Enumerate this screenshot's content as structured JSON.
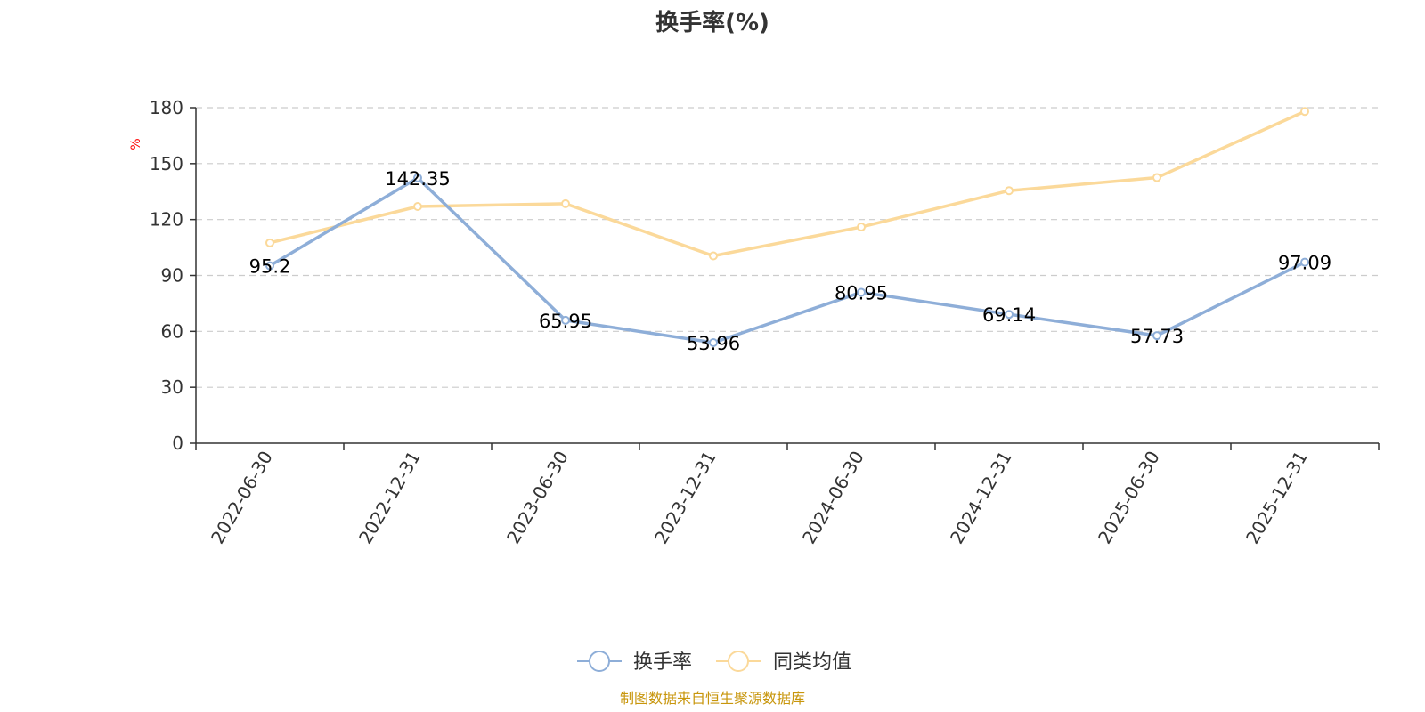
{
  "chart_data": {
    "type": "line",
    "title": "换手率(%)",
    "y_unit": "%",
    "categories": [
      "2022-06-30",
      "2022-12-31",
      "2023-06-30",
      "2023-12-31",
      "2024-06-30",
      "2024-12-31",
      "2025-06-30",
      "2025-12-31"
    ],
    "ylim": [
      0,
      180
    ],
    "yticks": [
      0,
      30,
      60,
      90,
      120,
      150,
      180
    ],
    "grid": true,
    "legend_position": "bottom",
    "series": [
      {
        "name": "换手率",
        "color": "#8eaed8",
        "values": [
          95.2,
          142.35,
          65.95,
          53.96,
          80.95,
          69.14,
          57.73,
          97.09
        ],
        "labels": [
          "95.2",
          "142.35",
          "65.95",
          "53.96",
          "80.95",
          "69.14",
          "57.73",
          "97.09"
        ]
      },
      {
        "name": "同类均值",
        "color": "#fbd99a",
        "values": [
          107.5,
          127,
          128.5,
          100.5,
          116,
          135.5,
          142.5,
          178
        ]
      }
    ]
  },
  "source_text": "制图数据来自恒生聚源数据库",
  "colors": {
    "axis": "#333333",
    "grid": "#cccccc",
    "unit": "#ff0000",
    "source": "#c8960c"
  }
}
